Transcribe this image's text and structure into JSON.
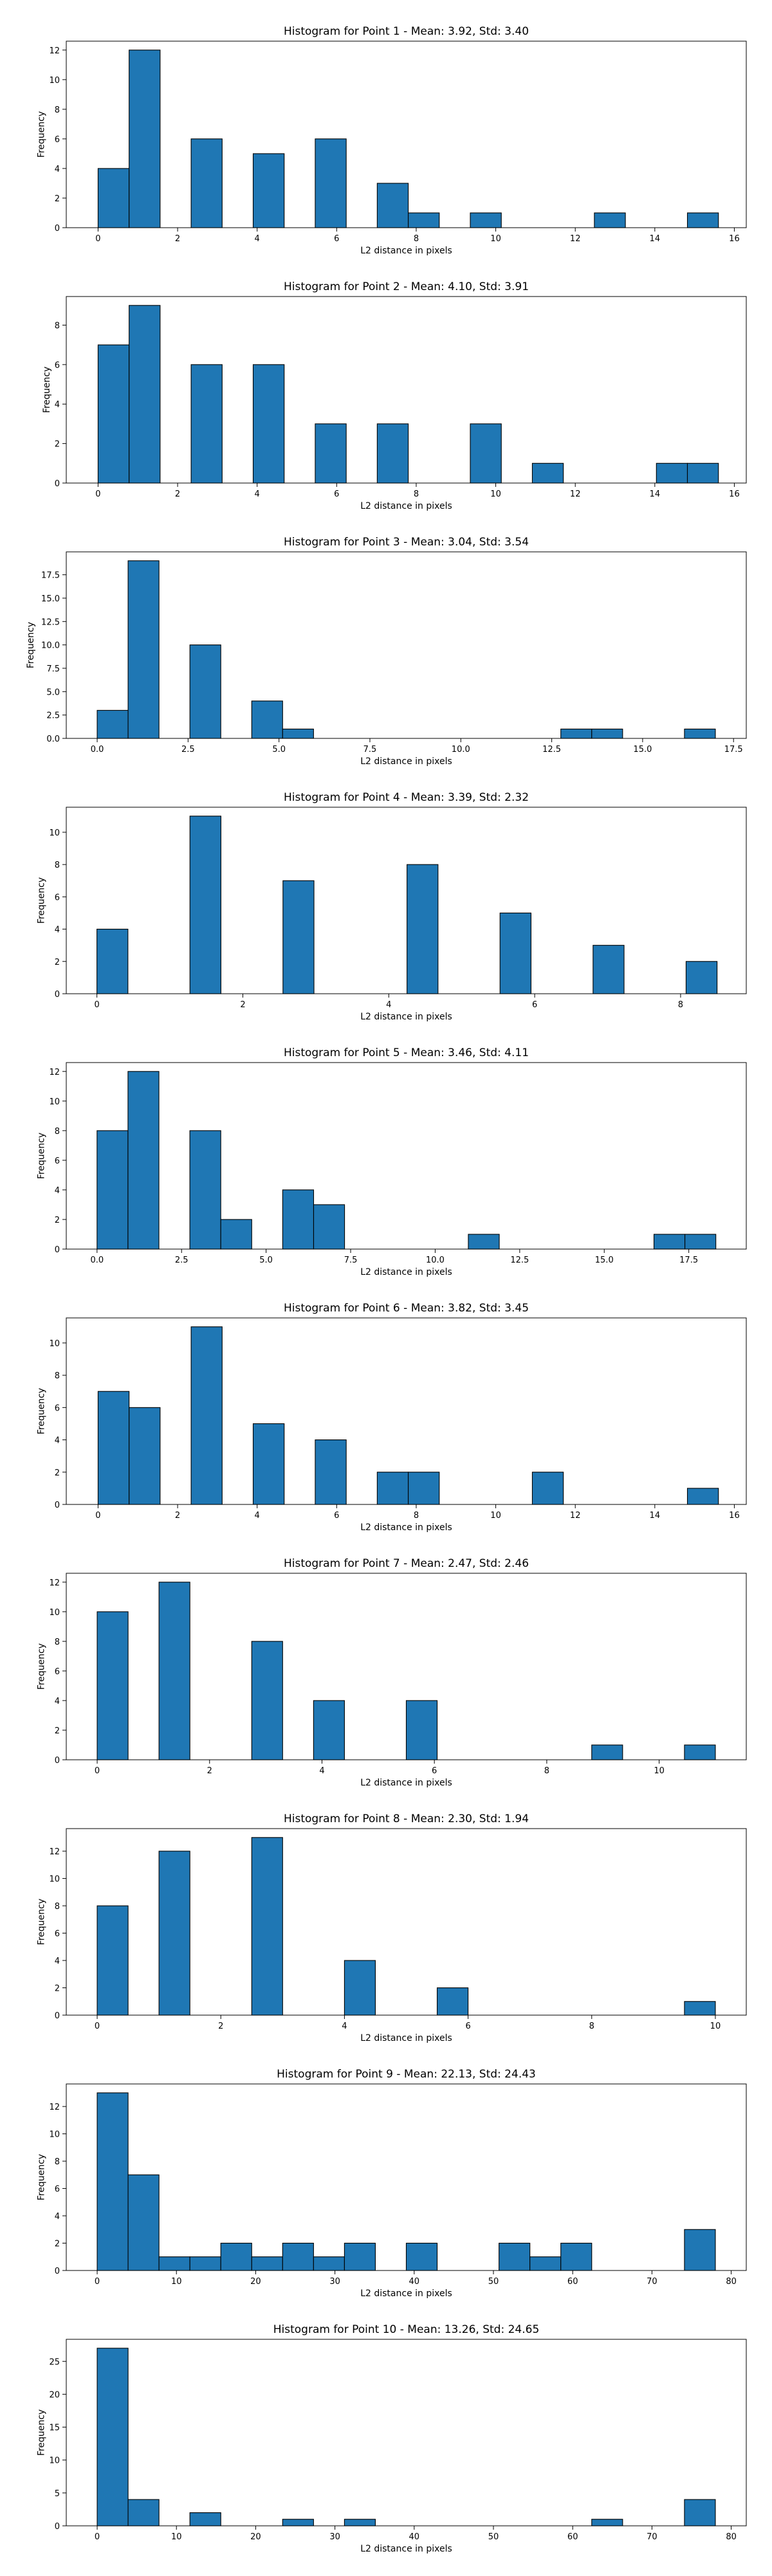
{
  "chart_data": [
    {
      "type": "bar",
      "title": "Histogram for Point 1 - Mean: 3.92, Std: 3.40",
      "xlabel": "L2 distance in pixels",
      "ylabel": "Frequency",
      "xlim": [
        -0.8,
        16.3
      ],
      "ylim": [
        0,
        12.6
      ],
      "xticks": [
        0,
        2,
        4,
        6,
        8,
        10,
        12,
        14,
        16
      ],
      "xtick_labels": [
        "0",
        "2",
        "4",
        "6",
        "8",
        "10",
        "12",
        "14",
        "16"
      ],
      "yticks": [
        0,
        2,
        4,
        6,
        8,
        10,
        12
      ],
      "ytick_labels": [
        "0",
        "2",
        "4",
        "6",
        "8",
        "10",
        "12"
      ],
      "bars": [
        {
          "x0": 0.0,
          "x1": 0.78,
          "value": 4
        },
        {
          "x0": 0.78,
          "x1": 1.56,
          "value": 12
        },
        {
          "x0": 2.34,
          "x1": 3.12,
          "value": 6
        },
        {
          "x0": 3.9,
          "x1": 4.68,
          "value": 5
        },
        {
          "x0": 5.46,
          "x1": 6.24,
          "value": 6
        },
        {
          "x0": 7.02,
          "x1": 7.8,
          "value": 3
        },
        {
          "x0": 7.8,
          "x1": 8.58,
          "value": 1
        },
        {
          "x0": 9.36,
          "x1": 10.14,
          "value": 1
        },
        {
          "x0": 12.48,
          "x1": 13.26,
          "value": 1
        },
        {
          "x0": 14.82,
          "x1": 15.6,
          "value": 1
        }
      ]
    },
    {
      "type": "bar",
      "title": "Histogram for Point 2 - Mean: 4.10, Std: 3.91",
      "xlabel": "L2 distance in pixels",
      "ylabel": "Frequency",
      "xlim": [
        -0.8,
        16.3
      ],
      "ylim": [
        0,
        9.45
      ],
      "xticks": [
        0,
        2,
        4,
        6,
        8,
        10,
        12,
        14,
        16
      ],
      "xtick_labels": [
        "0",
        "2",
        "4",
        "6",
        "8",
        "10",
        "12",
        "14",
        "16"
      ],
      "yticks": [
        0,
        2,
        4,
        6,
        8
      ],
      "ytick_labels": [
        "0",
        "2",
        "4",
        "6",
        "8"
      ],
      "bars": [
        {
          "x0": 0.0,
          "x1": 0.78,
          "value": 7
        },
        {
          "x0": 0.78,
          "x1": 1.56,
          "value": 9
        },
        {
          "x0": 2.34,
          "x1": 3.12,
          "value": 6
        },
        {
          "x0": 3.9,
          "x1": 4.68,
          "value": 6
        },
        {
          "x0": 5.46,
          "x1": 6.24,
          "value": 3
        },
        {
          "x0": 7.02,
          "x1": 7.8,
          "value": 3
        },
        {
          "x0": 9.36,
          "x1": 10.14,
          "value": 3
        },
        {
          "x0": 10.92,
          "x1": 11.7,
          "value": 1
        },
        {
          "x0": 14.04,
          "x1": 14.82,
          "value": 1
        },
        {
          "x0": 14.82,
          "x1": 15.6,
          "value": 1
        }
      ]
    },
    {
      "type": "bar",
      "title": "Histogram for Point 3 - Mean: 3.04, Std: 3.54",
      "xlabel": "L2 distance in pixels",
      "ylabel": "Frequency",
      "xlim": [
        -0.85,
        17.85
      ],
      "ylim": [
        0,
        19.95
      ],
      "xticks": [
        0,
        2.5,
        5,
        7.5,
        10,
        12.5,
        15,
        17.5
      ],
      "xtick_labels": [
        "0.0",
        "2.5",
        "5.0",
        "7.5",
        "10.0",
        "12.5",
        "15.0",
        "17.5"
      ],
      "yticks": [
        0,
        2.5,
        5,
        7.5,
        10,
        12.5,
        15,
        17.5
      ],
      "ytick_labels": [
        "0.0",
        "2.5",
        "5.0",
        "7.5",
        "10.0",
        "12.5",
        "15.0",
        "17.5"
      ],
      "bars": [
        {
          "x0": 0.0,
          "x1": 0.85,
          "value": 3
        },
        {
          "x0": 0.85,
          "x1": 1.7,
          "value": 19
        },
        {
          "x0": 2.55,
          "x1": 3.4,
          "value": 10
        },
        {
          "x0": 4.25,
          "x1": 5.1,
          "value": 4
        },
        {
          "x0": 5.1,
          "x1": 5.95,
          "value": 1
        },
        {
          "x0": 12.75,
          "x1": 13.6,
          "value": 1
        },
        {
          "x0": 13.6,
          "x1": 14.45,
          "value": 1
        },
        {
          "x0": 16.15,
          "x1": 17.0,
          "value": 1
        }
      ]
    },
    {
      "type": "bar",
      "title": "Histogram for Point 4 - Mean: 3.39, Std: 2.32",
      "xlabel": "L2 distance in pixels",
      "ylabel": "Frequency",
      "xlim": [
        -0.42,
        8.9
      ],
      "ylim": [
        0,
        11.55
      ],
      "xticks": [
        0,
        2,
        4,
        6,
        8
      ],
      "xtick_labels": [
        "0",
        "2",
        "4",
        "6",
        "8"
      ],
      "yticks": [
        0,
        2,
        4,
        6,
        8,
        10
      ],
      "ytick_labels": [
        "0",
        "2",
        "4",
        "6",
        "8",
        "10"
      ],
      "bars": [
        {
          "x0": 0.0,
          "x1": 0.425,
          "value": 4
        },
        {
          "x0": 1.275,
          "x1": 1.7,
          "value": 11
        },
        {
          "x0": 2.55,
          "x1": 2.975,
          "value": 7
        },
        {
          "x0": 4.25,
          "x1": 4.675,
          "value": 8
        },
        {
          "x0": 5.525,
          "x1": 5.95,
          "value": 5
        },
        {
          "x0": 6.8,
          "x1": 7.225,
          "value": 3
        },
        {
          "x0": 8.075,
          "x1": 8.5,
          "value": 2
        }
      ]
    },
    {
      "type": "bar",
      "title": "Histogram for Point 5 - Mean: 3.46, Std: 4.11",
      "xlabel": "L2 distance in pixels",
      "ylabel": "Frequency",
      "xlim": [
        -0.91,
        19.2
      ],
      "ylim": [
        0,
        12.6
      ],
      "xticks": [
        0,
        2.5,
        5,
        7.5,
        10,
        12.5,
        15,
        17.5
      ],
      "xtick_labels": [
        "0.0",
        "2.5",
        "5.0",
        "7.5",
        "10.0",
        "12.5",
        "15.0",
        "17.5"
      ],
      "yticks": [
        0,
        2,
        4,
        6,
        8,
        10,
        12
      ],
      "ytick_labels": [
        "0",
        "2",
        "4",
        "6",
        "8",
        "10",
        "12"
      ],
      "bars": [
        {
          "x0": 0.0,
          "x1": 0.915,
          "value": 8
        },
        {
          "x0": 0.915,
          "x1": 1.83,
          "value": 12
        },
        {
          "x0": 2.745,
          "x1": 3.66,
          "value": 8
        },
        {
          "x0": 3.66,
          "x1": 4.575,
          "value": 2
        },
        {
          "x0": 5.49,
          "x1": 6.405,
          "value": 4
        },
        {
          "x0": 6.405,
          "x1": 7.32,
          "value": 3
        },
        {
          "x0": 10.98,
          "x1": 11.895,
          "value": 1
        },
        {
          "x0": 16.47,
          "x1": 17.385,
          "value": 1
        },
        {
          "x0": 17.385,
          "x1": 18.3,
          "value": 1
        }
      ]
    },
    {
      "type": "bar",
      "title": "Histogram for Point 6 - Mean: 3.82, Std: 3.45",
      "xlabel": "L2 distance in pixels",
      "ylabel": "Frequency",
      "xlim": [
        -0.8,
        16.3
      ],
      "ylim": [
        0,
        11.55
      ],
      "xticks": [
        0,
        2,
        4,
        6,
        8,
        10,
        12,
        14,
        16
      ],
      "xtick_labels": [
        "0",
        "2",
        "4",
        "6",
        "8",
        "10",
        "12",
        "14",
        "16"
      ],
      "yticks": [
        0,
        2,
        4,
        6,
        8,
        10
      ],
      "ytick_labels": [
        "0",
        "2",
        "4",
        "6",
        "8",
        "10"
      ],
      "bars": [
        {
          "x0": 0.0,
          "x1": 0.78,
          "value": 7
        },
        {
          "x0": 0.78,
          "x1": 1.56,
          "value": 6
        },
        {
          "x0": 2.34,
          "x1": 3.12,
          "value": 11
        },
        {
          "x0": 3.9,
          "x1": 4.68,
          "value": 5
        },
        {
          "x0": 5.46,
          "x1": 6.24,
          "value": 4
        },
        {
          "x0": 7.02,
          "x1": 7.8,
          "value": 2
        },
        {
          "x0": 7.8,
          "x1": 8.58,
          "value": 2
        },
        {
          "x0": 10.92,
          "x1": 11.7,
          "value": 2
        },
        {
          "x0": 14.82,
          "x1": 15.6,
          "value": 1
        }
      ]
    },
    {
      "type": "bar",
      "title": "Histogram for Point 7 - Mean: 2.47, Std: 2.46",
      "xlabel": "L2 distance in pixels",
      "ylabel": "Frequency",
      "xlim": [
        -0.55,
        11.55
      ],
      "ylim": [
        0,
        12.6
      ],
      "xticks": [
        0,
        2,
        4,
        6,
        8,
        10
      ],
      "xtick_labels": [
        "0",
        "2",
        "4",
        "6",
        "8",
        "10"
      ],
      "yticks": [
        0,
        2,
        4,
        6,
        8,
        10,
        12
      ],
      "ytick_labels": [
        "0",
        "2",
        "4",
        "6",
        "8",
        "10",
        "12"
      ],
      "bars": [
        {
          "x0": 0.0,
          "x1": 0.55,
          "value": 10
        },
        {
          "x0": 1.1,
          "x1": 1.65,
          "value": 12
        },
        {
          "x0": 2.75,
          "x1": 3.3,
          "value": 8
        },
        {
          "x0": 3.85,
          "x1": 4.4,
          "value": 4
        },
        {
          "x0": 5.5,
          "x1": 6.05,
          "value": 4
        },
        {
          "x0": 8.8,
          "x1": 9.35,
          "value": 1
        },
        {
          "x0": 10.45,
          "x1": 11.0,
          "value": 1
        }
      ]
    },
    {
      "type": "bar",
      "title": "Histogram for Point 8 - Mean: 2.30, Std: 1.94",
      "xlabel": "L2 distance in pixels",
      "ylabel": "Frequency",
      "xlim": [
        -0.5,
        10.5
      ],
      "ylim": [
        0,
        13.65
      ],
      "xticks": [
        0,
        2,
        4,
        6,
        8,
        10
      ],
      "xtick_labels": [
        "0",
        "2",
        "4",
        "6",
        "8",
        "10"
      ],
      "yticks": [
        0,
        2,
        4,
        6,
        8,
        10,
        12
      ],
      "ytick_labels": [
        "0",
        "2",
        "4",
        "6",
        "8",
        "10",
        "12"
      ],
      "bars": [
        {
          "x0": 0.0,
          "x1": 0.5,
          "value": 8
        },
        {
          "x0": 1.0,
          "x1": 1.5,
          "value": 12
        },
        {
          "x0": 2.5,
          "x1": 3.0,
          "value": 13
        },
        {
          "x0": 4.0,
          "x1": 4.5,
          "value": 4
        },
        {
          "x0": 5.5,
          "x1": 6.0,
          "value": 2
        },
        {
          "x0": 9.5,
          "x1": 10.0,
          "value": 1
        }
      ]
    },
    {
      "type": "bar",
      "title": "Histogram for Point 9 - Mean: 22.13, Std: 24.43",
      "xlabel": "L2 distance in pixels",
      "ylabel": "Frequency",
      "xlim": [
        -3.9,
        81.9
      ],
      "ylim": [
        0,
        13.65
      ],
      "xticks": [
        0,
        10,
        20,
        30,
        40,
        50,
        60,
        70,
        80
      ],
      "xtick_labels": [
        "0",
        "10",
        "20",
        "30",
        "40",
        "50",
        "60",
        "70",
        "80"
      ],
      "yticks": [
        0,
        2,
        4,
        6,
        8,
        10,
        12
      ],
      "ytick_labels": [
        "0",
        "2",
        "4",
        "6",
        "8",
        "10",
        "12"
      ],
      "bars": [
        {
          "x0": 0.0,
          "x1": 3.9,
          "value": 13
        },
        {
          "x0": 3.9,
          "x1": 7.8,
          "value": 7
        },
        {
          "x0": 7.8,
          "x1": 11.7,
          "value": 1
        },
        {
          "x0": 11.7,
          "x1": 15.6,
          "value": 1
        },
        {
          "x0": 15.6,
          "x1": 19.5,
          "value": 2
        },
        {
          "x0": 19.5,
          "x1": 23.4,
          "value": 1
        },
        {
          "x0": 23.4,
          "x1": 27.3,
          "value": 2
        },
        {
          "x0": 27.3,
          "x1": 31.2,
          "value": 1
        },
        {
          "x0": 31.2,
          "x1": 35.1,
          "value": 2
        },
        {
          "x0": 39.0,
          "x1": 42.9,
          "value": 2
        },
        {
          "x0": 50.7,
          "x1": 54.6,
          "value": 2
        },
        {
          "x0": 54.6,
          "x1": 58.5,
          "value": 1
        },
        {
          "x0": 58.5,
          "x1": 62.4,
          "value": 2
        },
        {
          "x0": 74.1,
          "x1": 78.0,
          "value": 3
        }
      ]
    },
    {
      "type": "bar",
      "title": "Histogram for Point 10 - Mean: 13.26, Std: 24.65",
      "xlabel": "L2 distance in pixels",
      "ylabel": "Frequency",
      "xlim": [
        -3.9,
        81.9
      ],
      "ylim": [
        0,
        28.35
      ],
      "xticks": [
        0,
        10,
        20,
        30,
        40,
        50,
        60,
        70,
        80
      ],
      "xtick_labels": [
        "0",
        "10",
        "20",
        "30",
        "40",
        "50",
        "60",
        "70",
        "80"
      ],
      "yticks": [
        0,
        5,
        10,
        15,
        20,
        25
      ],
      "ytick_labels": [
        "0",
        "5",
        "10",
        "15",
        "20",
        "25"
      ],
      "bars": [
        {
          "x0": 0.0,
          "x1": 3.9,
          "value": 27
        },
        {
          "x0": 3.9,
          "x1": 7.8,
          "value": 4
        },
        {
          "x0": 11.7,
          "x1": 15.6,
          "value": 2
        },
        {
          "x0": 23.4,
          "x1": 27.3,
          "value": 1
        },
        {
          "x0": 31.2,
          "x1": 35.1,
          "value": 1
        },
        {
          "x0": 62.4,
          "x1": 66.3,
          "value": 1
        },
        {
          "x0": 74.1,
          "x1": 78.0,
          "value": 4
        }
      ]
    }
  ]
}
